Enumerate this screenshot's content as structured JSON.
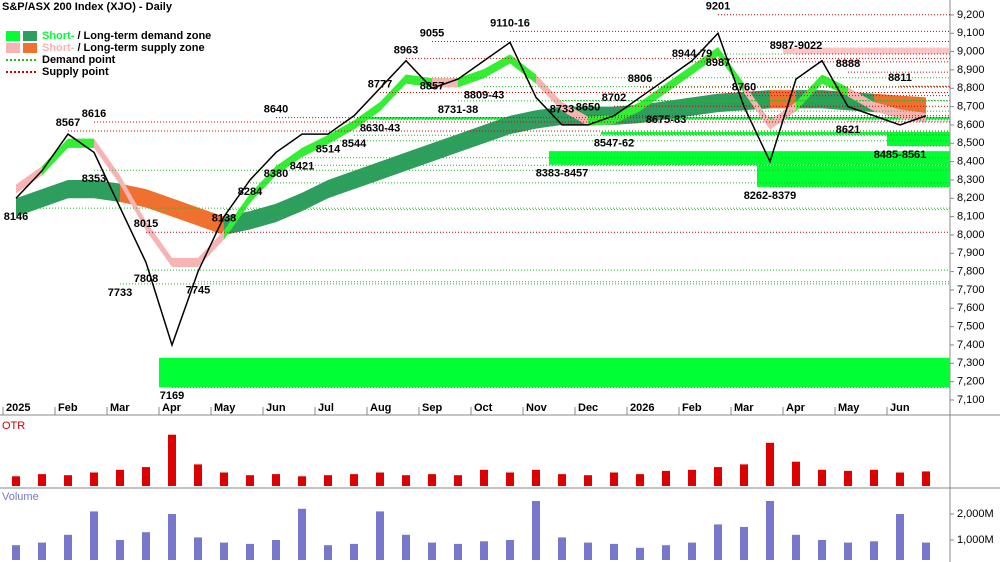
{
  "chart_data": {
    "type": "line",
    "title": "S&P/ASX 200 Index (XJO) - Daily",
    "categories": [
      "2025",
      null,
      "Feb",
      null,
      "Mar",
      null,
      "Apr",
      null,
      "May",
      null,
      "Jun",
      null,
      "Jul",
      null,
      "Aug",
      null,
      "Sep",
      null,
      "Oct",
      null,
      "Nov",
      null,
      "Dec",
      null,
      "2026",
      null,
      "Feb",
      null,
      "Mar",
      null,
      "Apr",
      null,
      "May",
      null,
      "Jun",
      null
    ],
    "series": [
      {
        "name": "Close",
        "color": "#000000",
        "values": [
          8200,
          8350,
          8550,
          8450,
          8150,
          7850,
          7400,
          7800,
          8100,
          8300,
          8450,
          8550,
          8550,
          8650,
          8800,
          8950,
          8800,
          8850,
          8950,
          9050,
          8750,
          8600,
          8600,
          8650,
          8750,
          8850,
          8950,
          9100,
          8700,
          8400,
          8850,
          8950,
          8700,
          8650,
          8600,
          8650
        ]
      }
    ],
    "short_band": {
      "upper": [
        8275,
        8375,
        8525,
        8525,
        8325,
        8075,
        7875,
        7875,
        8025,
        8225,
        8375,
        8475,
        8545,
        8625,
        8725,
        8875,
        8855,
        8855,
        8905,
        8985,
        8875,
        8725,
        8645,
        8655,
        8725,
        8825,
        8925,
        9025,
        8825,
        8625,
        8725,
        8875,
        8805,
        8725,
        8685,
        8665
      ],
      "lower": [
        8225,
        8325,
        8475,
        8475,
        8275,
        8025,
        7825,
        7825,
        7975,
        8175,
        8325,
        8425,
        8495,
        8575,
        8675,
        8825,
        8805,
        8805,
        8855,
        8935,
        8825,
        8675,
        8595,
        8605,
        8675,
        8775,
        8875,
        8975,
        8775,
        8575,
        8675,
        8825,
        8755,
        8675,
        8635,
        8615
      ]
    },
    "long_band": {
      "upper": [
        8200,
        8250,
        8300,
        8300,
        8280,
        8250,
        8200,
        8150,
        8100,
        8130,
        8170,
        8230,
        8300,
        8350,
        8400,
        8450,
        8500,
        8550,
        8600,
        8650,
        8680,
        8700,
        8700,
        8700,
        8710,
        8730,
        8750,
        8770,
        8780,
        8790,
        8790,
        8790,
        8780,
        8770,
        8760,
        8750
      ],
      "lower": [
        8100,
        8150,
        8200,
        8200,
        8180,
        8150,
        8100,
        8050,
        8000,
        8030,
        8070,
        8130,
        8200,
        8250,
        8300,
        8350,
        8400,
        8450,
        8500,
        8550,
        8580,
        8600,
        8600,
        8600,
        8610,
        8630,
        8650,
        8670,
        8680,
        8690,
        8690,
        8690,
        8680,
        8670,
        8660,
        8650
      ]
    },
    "ylim": [
      7018,
      9265
    ],
    "yticks": [
      {
        "value": 9200,
        "label": "9,200"
      },
      {
        "value": 9100,
        "label": "9,100"
      },
      {
        "value": 9000,
        "label": "9,000"
      },
      {
        "value": 8900,
        "label": "8,900"
      },
      {
        "value": 8800,
        "label": "8,800"
      },
      {
        "value": 8700,
        "label": "8,700"
      },
      {
        "value": 8600,
        "label": "8,600"
      },
      {
        "value": 8500,
        "label": "8,500"
      },
      {
        "value": 8400,
        "label": "8,400"
      },
      {
        "value": 8300,
        "label": "8,300"
      },
      {
        "value": 8200,
        "label": "8,200"
      },
      {
        "value": 8100,
        "label": "8,100"
      },
      {
        "value": 8000,
        "label": "8,000"
      },
      {
        "value": 7900,
        "label": "7,900"
      },
      {
        "value": 7800,
        "label": "7,800"
      },
      {
        "value": 7700,
        "label": "7,700"
      },
      {
        "value": 7600,
        "label": "7,600"
      },
      {
        "value": 7500,
        "label": "7,500"
      },
      {
        "value": 7400,
        "label": "7,400"
      },
      {
        "value": 7300,
        "label": "7,300"
      },
      {
        "value": 7200,
        "label": "7,200"
      },
      {
        "value": 7100,
        "label": "7,100"
      }
    ],
    "demand_zones": [
      {
        "low": 7169,
        "high": 7330,
        "start": 6
      },
      {
        "low": 8262,
        "high": 8379,
        "start": 29
      },
      {
        "low": 8383,
        "high": 8457,
        "start": 21
      },
      {
        "low": 8547,
        "high": 8562,
        "start": 23
      },
      {
        "low": 8630,
        "high": 8643,
        "start": 14
      },
      {
        "low": 8485,
        "high": 8561,
        "start": 34
      }
    ],
    "supply_zones": [
      {
        "low": 8987,
        "high": 9022,
        "start": 30
      }
    ],
    "zone_colors": {
      "demand": "#00ff33",
      "supply": "#ff9f9f"
    },
    "annotations": [
      {
        "value": 8146,
        "index": 0,
        "kind": "demand"
      },
      {
        "value": 8567,
        "index": 2,
        "kind": "supply"
      },
      {
        "value": 8616,
        "index": 3,
        "kind": "supply"
      },
      {
        "value": 8353,
        "index": 3,
        "kind": "demand"
      },
      {
        "value": 8015,
        "index": 5,
        "kind": "supply"
      },
      {
        "value": 7808,
        "index": 5,
        "kind": "demand"
      },
      {
        "value": 7733,
        "index": 4,
        "kind": "demand"
      },
      {
        "value": 7169,
        "index": 6,
        "kind": "demand"
      },
      {
        "value": 7745,
        "index": 7,
        "kind": "demand"
      },
      {
        "value": 8138,
        "index": 8,
        "kind": "demand"
      },
      {
        "value": 8284,
        "index": 9,
        "kind": "demand"
      },
      {
        "value": 8380,
        "index": 10,
        "kind": "demand"
      },
      {
        "value": 8640,
        "index": 10,
        "kind": "supply"
      },
      {
        "value": 8421,
        "index": 11,
        "kind": "demand"
      },
      {
        "value": 8514,
        "index": 12,
        "kind": "demand"
      },
      {
        "value": 8544,
        "index": 13,
        "kind": "demand"
      },
      {
        "value": 8777,
        "index": 14,
        "kind": "supply"
      },
      {
        "value": 8630,
        "label": "8630-43",
        "index": 14,
        "kind": "demand"
      },
      {
        "value": 8963,
        "index": 15,
        "kind": "supply"
      },
      {
        "value": 9055,
        "index": 16,
        "kind": "supply"
      },
      {
        "value": 8857,
        "index": 16,
        "kind": "demand"
      },
      {
        "value": 8731,
        "label": "8731-38",
        "index": 17,
        "kind": "demand"
      },
      {
        "value": 8809,
        "label": "8809-43",
        "index": 18,
        "kind": "demand"
      },
      {
        "value": 9110,
        "label": "9110-16",
        "index": 19,
        "kind": "supply"
      },
      {
        "value": 8733,
        "index": 21,
        "kind": "demand"
      },
      {
        "value": 8650,
        "index": 22,
        "kind": "supply"
      },
      {
        "value": 8383,
        "label": "8383-8457",
        "index": 21,
        "kind": "demand"
      },
      {
        "value": 8702,
        "index": 23,
        "kind": "supply"
      },
      {
        "value": 8547,
        "label": "8547-62",
        "index": 23,
        "kind": "demand"
      },
      {
        "value": 8806,
        "index": 24,
        "kind": "supply"
      },
      {
        "value": 8675,
        "label": "8675-83",
        "index": 25,
        "kind": "demand"
      },
      {
        "value": 8944,
        "label": "8944-79",
        "index": 26,
        "kind": "supply"
      },
      {
        "value": 9201,
        "index": 27,
        "kind": "supply"
      },
      {
        "value": 8987,
        "index": 27,
        "kind": "demand"
      },
      {
        "value": 8760,
        "index": 28,
        "kind": "supply"
      },
      {
        "value": 8262,
        "label": "8262-8379",
        "index": 29,
        "kind": "demand"
      },
      {
        "value": 8987,
        "label": "8987-9022",
        "index": 30,
        "kind": "supply"
      },
      {
        "value": 8888,
        "index": 32,
        "kind": "supply"
      },
      {
        "value": 8621,
        "index": 32,
        "kind": "demand"
      },
      {
        "value": 8811,
        "index": 34,
        "kind": "supply"
      },
      {
        "value": 8485,
        "label": "8485-8561",
        "index": 34,
        "kind": "demand"
      }
    ],
    "band_colors": {
      "short_demand": "#33ee33",
      "short_supply": "#f8b4b4",
      "long_demand": "#2e9e5e",
      "long_supply": "#f07030",
      "demand_point": "#22bb22",
      "supply_point": "#dd0000"
    },
    "legend": [
      {
        "short": "Short-",
        "rest": " / Long-term demand zone",
        "colors": [
          "#00ff33",
          "#2e9e5e"
        ]
      },
      {
        "short": "Short-",
        "rest": " / Long-term supply zone",
        "colors": [
          "#f8b4b4",
          "#f07030"
        ]
      },
      {
        "text": "Demand point",
        "color": "#22bb22"
      },
      {
        "text": "Supply point",
        "color": "#dd0000"
      }
    ],
    "otr": {
      "title": "OTR",
      "color": "#dd0000",
      "ylim": [
        0,
        1
      ],
      "values": [
        0.18,
        0.22,
        0.2,
        0.25,
        0.3,
        0.35,
        0.95,
        0.4,
        0.25,
        0.2,
        0.22,
        0.18,
        0.2,
        0.22,
        0.25,
        0.2,
        0.22,
        0.2,
        0.3,
        0.25,
        0.3,
        0.22,
        0.2,
        0.25,
        0.22,
        0.28,
        0.3,
        0.35,
        0.4,
        0.8,
        0.45,
        0.3,
        0.28,
        0.3,
        0.25,
        0.27
      ]
    },
    "volume": {
      "title": "Volume",
      "color": "#7777cc",
      "ylim": [
        231,
        2923
      ],
      "yticks": [
        {
          "value": 2000,
          "label": "2,000M"
        },
        {
          "value": 1000,
          "label": "1,000M"
        }
      ],
      "values": [
        800,
        900,
        1200,
        2100,
        1000,
        1300,
        2000,
        1100,
        900,
        850,
        1000,
        2200,
        800,
        850,
        2100,
        1200,
        900,
        850,
        950,
        1000,
        2500,
        1100,
        900,
        850,
        700,
        800,
        900,
        1600,
        1500,
        2500,
        1200,
        1000,
        900,
        950,
        2000,
        900
      ]
    }
  }
}
